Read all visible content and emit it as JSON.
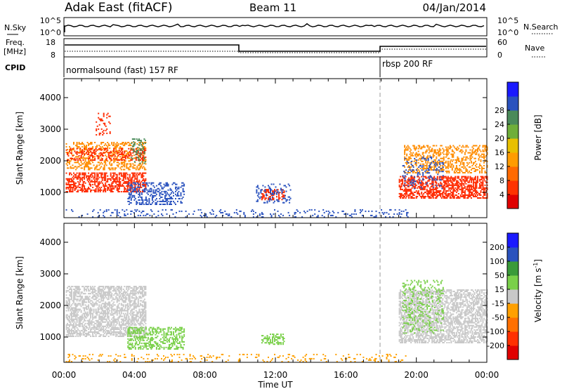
{
  "header": {
    "station": "Adak East (fitACF)",
    "beam": "Beam 11",
    "date": "04/Jan/2014"
  },
  "status_panels": {
    "nsky_label": "N.Sky",
    "nsky_ticks": [
      "10^5",
      "10^0"
    ],
    "nsearch_label": "N.Search",
    "nsearch_ticks": [
      "10^5",
      "10^0"
    ],
    "freq_label": "Freq.",
    "freq_unit": "[MHz]",
    "freq_ticks": [
      "18",
      "8"
    ],
    "nave_label": "Nave",
    "nave_ticks": [
      "60",
      "0"
    ],
    "cpid_label": "CPID",
    "programs": [
      "normalsound (fast) 157 RF",
      "rbsp 200 RF"
    ]
  },
  "chart_data": [
    {
      "type": "heatmap",
      "name": "power",
      "ylabel": "Slant Range [km]",
      "y_ticks": [
        "1000",
        "2000",
        "3000",
        "4000"
      ],
      "ylim": [
        200,
        4600
      ],
      "xlim": [
        0,
        24
      ],
      "x_ticks": [
        "00:00",
        "04:00",
        "08:00",
        "12:00",
        "16:00",
        "20:00",
        "00:00"
      ],
      "colorbar_label": "Power [dB]",
      "colorbar_ticks": [
        "4",
        "8",
        "12",
        "16",
        "20",
        "24",
        "28"
      ],
      "colorbar_colors": [
        "#1a1aff",
        "#2a52be",
        "#4a8a5a",
        "#6fae3a",
        "#e8c000",
        "#ff9c00",
        "#ff6a00",
        "#ff3300",
        "#e00000"
      ],
      "cell_colors": {
        "strong": "#ff2a00",
        "mid": "#ff8c00",
        "weak": "#2a52be",
        "green": "#4a8a5a"
      }
    },
    {
      "type": "heatmap",
      "name": "velocity",
      "ylabel": "Slant Range [km]",
      "y_ticks": [
        "1000",
        "2000",
        "3000",
        "4000"
      ],
      "ylim": [
        200,
        4600
      ],
      "xlim": [
        0,
        24
      ],
      "x_ticks": [
        "00:00",
        "04:00",
        "08:00",
        "12:00",
        "16:00",
        "20:00",
        "00:00"
      ],
      "xlabel": "Time UT",
      "colorbar_label": "Velocity [m s",
      "colorbar_label_sup": "-1",
      "colorbar_label_end": "]",
      "colorbar_ticks": [
        "200",
        "100",
        "50",
        "15",
        "-15",
        "-50",
        "-100",
        "-200"
      ],
      "colorbar_colors": [
        "#1a1aff",
        "#2a52be",
        "#3a9a3a",
        "#7ad04a",
        "#c8c8c8",
        "#ffa000",
        "#ff7000",
        "#ff3000",
        "#e00000"
      ],
      "cell_colors": {
        "gray": "#c8c8c8",
        "green": "#7ad04a",
        "orange": "#ffa000"
      }
    }
  ]
}
